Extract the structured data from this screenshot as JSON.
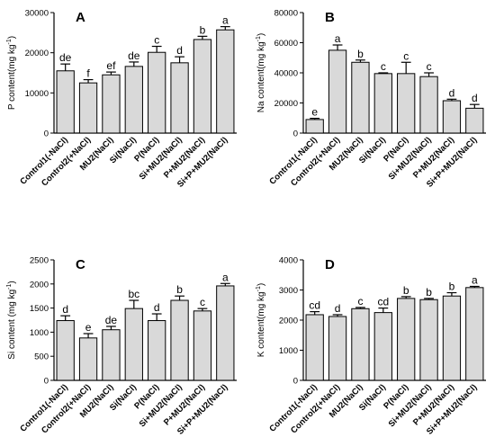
{
  "chart_data": [
    {
      "type": "bar",
      "panel": "A",
      "ylabel": "P content(mg kg",
      "ylabel_sup": "-1",
      "ylabel_close": ")",
      "categories": [
        "Control1(-NaCl)",
        "Control2(+NaCl)",
        "MU2(NaCl)",
        "Si(NaCl)",
        "P(NaCl)",
        "Si+MU2(NaCl)",
        "P+MU2(NaCl)",
        "Si+P+MU2(NaCl)"
      ],
      "values": [
        15500,
        12500,
        14500,
        16600,
        20100,
        17500,
        23300,
        25700
      ],
      "errors": [
        1700,
        800,
        700,
        1100,
        1500,
        1500,
        800,
        800
      ],
      "labels": [
        "de",
        "f",
        "ef",
        "de",
        "c",
        "d",
        "b",
        "a"
      ],
      "ylim": [
        0,
        30000
      ],
      "yticks": [
        0,
        10000,
        20000,
        30000
      ]
    },
    {
      "type": "bar",
      "panel": "B",
      "ylabel": "Na content(mg kg",
      "ylabel_sup": "-1",
      "ylabel_close": ")",
      "categories": [
        "Control1(-NaCl)",
        "Control2(+NaCl)",
        "MU2(NaCl)",
        "Si(NaCl)",
        "P(NaCl)",
        "Si+MU2(NaCl)",
        "P+MU2(NaCl)",
        "Si+P+MU2(NaCl)"
      ],
      "values": [
        9000,
        55000,
        47000,
        39500,
        39500,
        37500,
        21500,
        16500
      ],
      "errors": [
        800,
        3500,
        1500,
        500,
        7500,
        2500,
        1000,
        2500
      ],
      "labels": [
        "e",
        "a",
        "b",
        "c",
        "c",
        "c",
        "d",
        "d"
      ],
      "ylim": [
        0,
        80000
      ],
      "yticks": [
        0,
        20000,
        40000,
        60000,
        80000
      ]
    },
    {
      "type": "bar",
      "panel": "C",
      "ylabel": "Si content (mg kg",
      "ylabel_sup": "-1",
      "ylabel_close": ")",
      "categories": [
        "Control1(-NaCl)",
        "Control2(+NaCl)",
        "MU2(NaCl)",
        "Si(NaCl)",
        "P(NaCl)",
        "Si+MU2(NaCl)",
        "P+MU2(NaCl)",
        "Si+P+MU2(NaCl)"
      ],
      "values": [
        1240,
        880,
        1050,
        1490,
        1240,
        1660,
        1440,
        1960
      ],
      "errors": [
        100,
        90,
        70,
        170,
        140,
        90,
        50,
        50
      ],
      "labels": [
        "d",
        "e",
        "de",
        "bc",
        "d",
        "b",
        "c",
        "a"
      ],
      "ylim": [
        0,
        2500
      ],
      "yticks": [
        0,
        500,
        1000,
        1500,
        2000,
        2500
      ]
    },
    {
      "type": "bar",
      "panel": "D",
      "ylabel": "K content(mg kg",
      "ylabel_sup": "-1",
      "ylabel_close": ")",
      "categories": [
        "Control1(-NaCl)",
        "Control2(+NaCl)",
        "MU2(NaCl)",
        "Si(NaCl)",
        "P(NaCl)",
        "Si+MU2(NaCl)",
        "P+MU2(NaCl)",
        "Si+P+MU2(NaCl)"
      ],
      "values": [
        2180,
        2120,
        2380,
        2250,
        2720,
        2680,
        2800,
        3080
      ],
      "errors": [
        100,
        60,
        40,
        150,
        60,
        40,
        110,
        40
      ],
      "labels": [
        "cd",
        "d",
        "c",
        "cd",
        "b",
        "b",
        "b",
        "a"
      ],
      "ylim": [
        0,
        4000
      ],
      "yticks": [
        0,
        1000,
        2000,
        3000,
        4000
      ]
    }
  ]
}
